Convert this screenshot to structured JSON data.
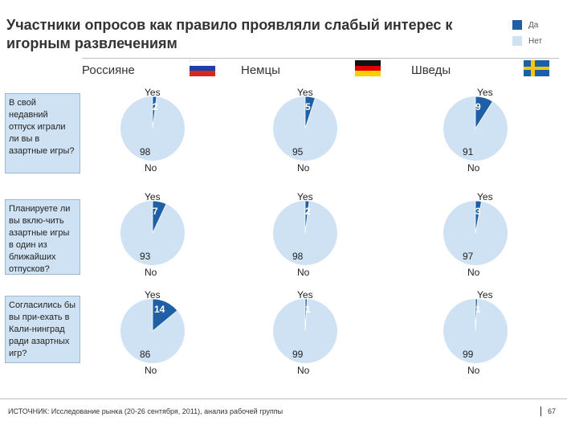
{
  "title": "Участники опросов как правило проявляли слабый интерес к игорным развлечениям",
  "legend": [
    {
      "label": "Да",
      "color": "#1f5fa6"
    },
    {
      "label": "Нет",
      "color": "#cfe2f3"
    }
  ],
  "countries": [
    {
      "name": "Россияне",
      "flag": "russia-flag"
    },
    {
      "name": "Немцы",
      "flag": "germany-flag"
    },
    {
      "name": "Шведы",
      "flag": "sweden-flag"
    }
  ],
  "questions": [
    "В свой недавний отпуск играли ли вы в азартные игры?",
    "Планируете ли вы вклю-чить азартные игры в один из ближайших отпусков?",
    "Согласились бы вы при-ехать в Кали-нинград ради азартных игр?"
  ],
  "chart_data": {
    "type": "pie",
    "title": "Участники опросов как правило проявляли слабый интерес к игорным развлечениям",
    "categories": [
      "Yes",
      "No"
    ],
    "grid": [
      [
        {
          "yes": 2,
          "no": 98
        },
        {
          "yes": 5,
          "no": 95
        },
        {
          "yes": 9,
          "no": 91
        }
      ],
      [
        {
          "yes": 7,
          "no": 93
        },
        {
          "yes": 2,
          "no": 98
        },
        {
          "yes": 3,
          "no": 97
        }
      ],
      [
        {
          "yes": 14,
          "no": 86
        },
        {
          "yes": 1,
          "no": 99
        },
        {
          "yes": 1,
          "no": 99
        }
      ]
    ],
    "yes_label": "Yes",
    "no_label": "No"
  },
  "source": "ИСТОЧНИК: Исследование рынка (20-26 сентября, 2011), анализ рабочей группы",
  "page_number": "67",
  "colors": {
    "yes": "#1f5fa6",
    "no": "#cfe2f3",
    "accent": "#1f5fa6"
  }
}
